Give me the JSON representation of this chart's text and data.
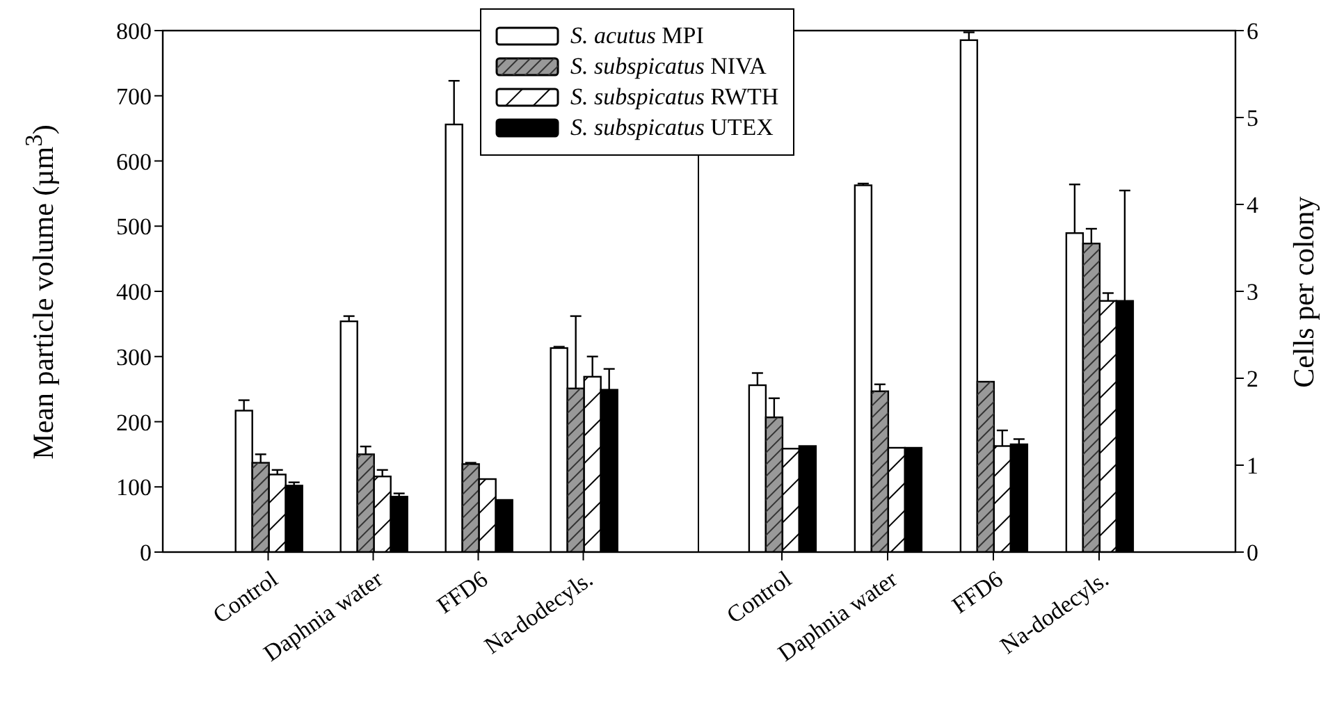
{
  "chart_data": [
    {
      "type": "bar",
      "categories": [
        "Control",
        "Daphnia water",
        "FFD6",
        "Na-dodecyls."
      ],
      "ylabel": "Mean particle volume (µm$^{3}$)",
      "ylim": [
        0,
        800
      ],
      "yticks": [
        0,
        100,
        200,
        300,
        400,
        500,
        600,
        700,
        800
      ],
      "legend": "top right",
      "series": [
        {
          "name": "S. acutus MPI",
          "color": "#ffffff",
          "values": [
            217,
            354,
            656,
            313
          ],
          "errors": [
            [
              217,
              233
            ],
            [
              354,
              362
            ],
            [
              656,
              723
            ],
            [
              313,
              315
            ]
          ]
        },
        {
          "name": "S. subspicatus NIVA",
          "color": "#999999",
          "values": [
            137,
            150,
            135,
            251
          ],
          "errors": [
            [
              137,
              150
            ],
            [
              150,
              162
            ],
            [
              135,
              137
            ],
            [
              251,
              362
            ]
          ]
        },
        {
          "name": "S. subspicatus RWTH",
          "color": "#ffffff",
          "values": [
            119,
            116,
            112,
            269
          ],
          "errors": [
            [
              119,
              126
            ],
            [
              116,
              126
            ],
            null,
            [
              269,
              300
            ]
          ]
        },
        {
          "name": "S. subspicatus UTEX",
          "color": "#000000",
          "values": [
            102,
            85,
            80,
            249
          ],
          "errors": [
            [
              102,
              107
            ],
            [
              85,
              90
            ],
            null,
            [
              249,
              281
            ]
          ]
        }
      ]
    },
    {
      "type": "bar",
      "categories": [
        "Control",
        "Daphnia water",
        "FFD6",
        "Na-dodecyls."
      ],
      "ylabel": "Cells per colony",
      "ylim": [
        0,
        6
      ],
      "yticks": [
        0,
        1,
        2,
        3,
        4,
        5,
        6
      ],
      "series": [
        {
          "color": "#ffffff",
          "values": [
            1.92,
            4.22,
            5.89,
            3.67
          ],
          "errors": [
            [
              1.92,
              2.06
            ],
            [
              4.22,
              4.24
            ],
            [
              5.89,
              5.98
            ],
            [
              3.67,
              4.23
            ]
          ]
        },
        {
          "color": "#999999",
          "values": [
            1.55,
            1.85,
            1.96,
            3.55
          ],
          "errors": [
            [
              1.55,
              1.77
            ],
            [
              1.85,
              1.93
            ],
            null,
            [
              3.55,
              3.72
            ]
          ]
        },
        {
          "color": "#ffffff",
          "values": [
            1.19,
            1.2,
            1.22,
            2.89
          ],
          "errors": [
            null,
            null,
            [
              1.22,
              1.4
            ],
            [
              2.89,
              2.98
            ]
          ]
        },
        {
          "color": "#000000",
          "values": [
            1.22,
            1.2,
            1.24,
            2.89
          ],
          "errors": [
            null,
            null,
            [
              1.24,
              1.3
            ],
            [
              2.89,
              4.16
            ]
          ]
        }
      ]
    }
  ]
}
